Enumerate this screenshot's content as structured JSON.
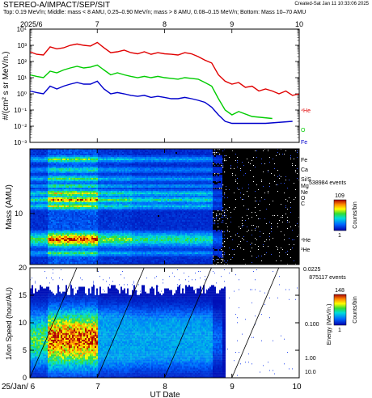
{
  "header": {
    "title": "STEREO-A/IMPACT/SEP/SIT",
    "created": "Created-Sat Jan 11 10:33:06 2025",
    "subtitle": "Top: 0.19 MeV/n; Middle: mass < 8 AMU, 0.25–0.90 MeV/n; mass > 8 AMU, 0.08–0.15 MeV/n; Bottom: Mass 10–70 AMU"
  },
  "colors": {
    "he4": "#e00000",
    "o": "#00cc00",
    "fe": "#0000cc",
    "colorbar_low": "#0000aa",
    "colorbar_high": "#aa0000"
  },
  "chart_data": [
    {
      "type": "line",
      "panel": "top",
      "ylabel": "#/(cm² s sr MeV/n.)",
      "yscale": "log",
      "ylim": [
        0.001,
        10000
      ],
      "ytick_labels": [
        "10⁻³",
        "10⁻²",
        "10⁻¹",
        "10⁰",
        "10¹",
        "10²",
        "10³",
        "10⁴"
      ],
      "xlim": [
        6,
        10
      ],
      "top_tick_labels": [
        "2025/6",
        "7",
        "8",
        "9",
        "10"
      ],
      "series": [
        {
          "name": "⁴He",
          "color": "#e00000",
          "x": [
            6.0,
            6.1,
            6.2,
            6.3,
            6.4,
            6.5,
            6.6,
            6.7,
            6.8,
            6.9,
            7.0,
            7.1,
            7.2,
            7.3,
            7.4,
            7.5,
            7.6,
            7.7,
            7.8,
            7.9,
            8.0,
            8.1,
            8.2,
            8.3,
            8.4,
            8.5,
            8.6,
            8.7,
            8.8,
            8.9,
            9.0,
            9.1,
            9.2,
            9.3,
            9.4,
            9.5,
            9.6,
            9.7,
            9.8,
            9.9,
            10.0
          ],
          "y": [
            400,
            280,
            250,
            800,
            600,
            700,
            1000,
            1200,
            1000,
            900,
            1500,
            700,
            350,
            400,
            500,
            350,
            300,
            400,
            280,
            350,
            300,
            280,
            250,
            350,
            300,
            200,
            120,
            80,
            15,
            6,
            4,
            5,
            2.5,
            3,
            1.5,
            2,
            1.5,
            1,
            1.5,
            0.8,
            1
          ]
        },
        {
          "name": "O",
          "color": "#00cc00",
          "x": [
            6.0,
            6.1,
            6.2,
            6.3,
            6.4,
            6.5,
            6.6,
            6.7,
            6.8,
            6.9,
            7.0,
            7.1,
            7.2,
            7.3,
            7.4,
            7.5,
            7.6,
            7.7,
            7.8,
            7.9,
            8.0,
            8.1,
            8.2,
            8.3,
            8.4,
            8.5,
            8.6,
            8.7,
            8.8,
            8.9,
            9.0,
            9.1,
            9.3,
            9.6
          ],
          "y": [
            15,
            12,
            10,
            25,
            20,
            30,
            40,
            50,
            40,
            45,
            60,
            30,
            15,
            20,
            15,
            12,
            10,
            12,
            10,
            12,
            10,
            9,
            8,
            10,
            9,
            8,
            5,
            3,
            0.5,
            0.1,
            0.05,
            0.08,
            0.04,
            0.03
          ]
        },
        {
          "name": "Fe",
          "color": "#0000cc",
          "x": [
            6.0,
            6.1,
            6.2,
            6.3,
            6.4,
            6.5,
            6.6,
            6.7,
            6.8,
            6.9,
            7.0,
            7.1,
            7.2,
            7.3,
            7.4,
            7.5,
            7.6,
            7.7,
            7.8,
            7.9,
            8.0,
            8.1,
            8.2,
            8.3,
            8.4,
            8.5,
            8.6,
            8.7,
            8.8,
            8.9,
            9.0,
            9.5,
            9.9
          ],
          "y": [
            1.5,
            1.2,
            1,
            3,
            2,
            3,
            4,
            5,
            4,
            4,
            6,
            2,
            1,
            1.2,
            1,
            0.8,
            0.7,
            0.8,
            0.6,
            0.7,
            0.6,
            0.5,
            0.5,
            0.6,
            0.5,
            0.4,
            0.3,
            0.15,
            0.05,
            0.02,
            0.015,
            0.015,
            0.02
          ]
        }
      ],
      "series_labels": [
        "⁴He",
        "O",
        "Fe"
      ]
    },
    {
      "type": "heatmap",
      "panel": "middle",
      "ylabel": "Mass (AMU)",
      "ytick_labels": [
        "10"
      ],
      "xlim": [
        6,
        10
      ],
      "right_labels": [
        "Fe",
        "Ca",
        "Si/S",
        "Mg",
        "Ne",
        "O",
        "C",
        "⁴He",
        "³He"
      ],
      "events_label": "538984 events",
      "colorbar": {
        "label": "Counts/bin",
        "max": "109",
        "min": "1"
      }
    },
    {
      "type": "heatmap",
      "panel": "bottom",
      "ylabel": "1/Ion Speed (hour/AU)",
      "ylim": [
        0,
        20
      ],
      "ytick_labels": [
        "0",
        "5",
        "10",
        "15",
        "20"
      ],
      "right_axis_label": "Energy (MeV/n.)",
      "right_tick_labels": [
        "0.0225",
        "0.100",
        "1.00",
        "10.0"
      ],
      "xlabel": "UT Date",
      "xlim": [
        6,
        10
      ],
      "x_tick_labels": [
        "25/Jan/ 6",
        "7",
        "8",
        "9",
        "10"
      ],
      "events_label": "875117 events",
      "colorbar": {
        "label": "Counts/bin",
        "max": "148",
        "min": "1"
      }
    }
  ]
}
